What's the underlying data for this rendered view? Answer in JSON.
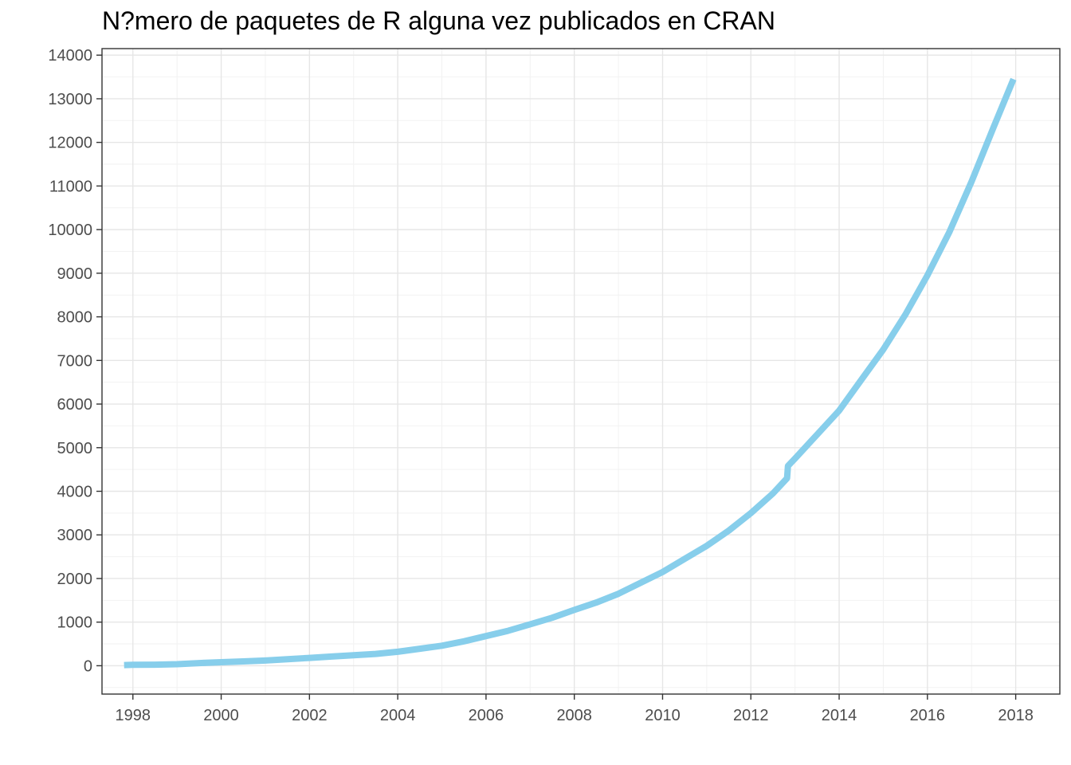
{
  "chart_data": {
    "type": "line",
    "title": "N?mero de paquetes de R alguna vez publicados en CRAN",
    "xlabel": "",
    "ylabel": "",
    "xlim": [
      1997.3,
      2019.0
    ],
    "ylim": [
      -650,
      14150
    ],
    "x_ticks": [
      1998,
      2000,
      2002,
      2004,
      2006,
      2008,
      2010,
      2012,
      2014,
      2016,
      2018
    ],
    "y_ticks": [
      0,
      1000,
      2000,
      3000,
      4000,
      5000,
      6000,
      7000,
      8000,
      9000,
      10000,
      11000,
      12000,
      13000,
      14000
    ],
    "grid": true,
    "legend": "none",
    "line_color": "#87CEEB",
    "series": [
      {
        "x": [
          1997.8,
          1998.0,
          1998.5,
          1999.0,
          1999.5,
          2000.0,
          2000.5,
          2001.0,
          2001.5,
          2002.0,
          2002.5,
          2003.0,
          2003.5,
          2004.0,
          2004.5,
          2005.0,
          2005.5,
          2006.0,
          2006.5,
          2007.0,
          2007.5,
          2008.0,
          2008.5,
          2009.0,
          2009.5,
          2010.0,
          2010.5,
          2011.0,
          2011.5,
          2012.0,
          2012.5,
          2012.82,
          2012.84,
          2013.0,
          2013.5,
          2014.0,
          2014.5,
          2015.0,
          2015.5,
          2016.0,
          2016.5,
          2017.0,
          2017.5,
          2017.95
        ],
        "y": [
          15,
          20,
          25,
          35,
          60,
          80,
          100,
          120,
          150,
          180,
          210,
          240,
          270,
          320,
          390,
          460,
          560,
          680,
          800,
          950,
          1100,
          1280,
          1450,
          1650,
          1900,
          2150,
          2450,
          2750,
          3100,
          3500,
          3950,
          4300,
          4580,
          4750,
          5300,
          5850,
          6550,
          7250,
          8050,
          8950,
          9950,
          11100,
          12350,
          13450
        ]
      }
    ]
  }
}
